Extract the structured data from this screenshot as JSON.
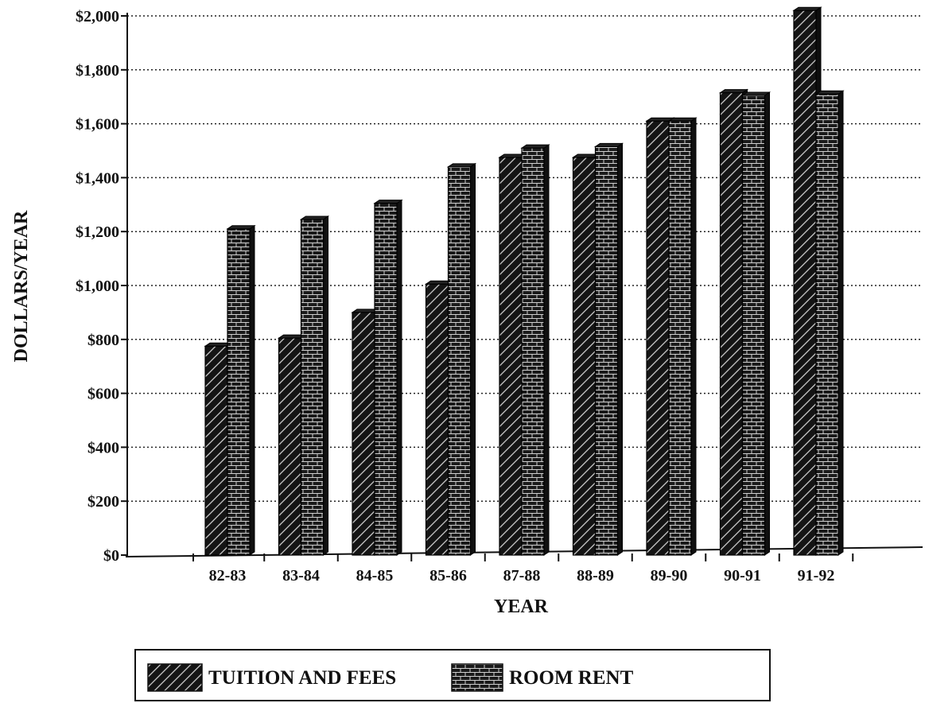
{
  "chart_data": {
    "type": "bar",
    "xlabel": "YEAR",
    "ylabel": "DOLLARS/YEAR",
    "ylim": [
      0,
      2000
    ],
    "yticks": [
      0,
      200,
      400,
      600,
      800,
      1000,
      1200,
      1400,
      1600,
      1800,
      2000
    ],
    "ytick_labels": [
      "$0",
      "$200",
      "$400",
      "$600",
      "$800",
      "$1,000",
      "$1,200",
      "$1,400",
      "$1,600",
      "$1,800",
      "$2,000"
    ],
    "categories": [
      "82-83",
      "83-84",
      "84-85",
      "85-86",
      "87-88",
      "88-89",
      "89-90",
      "90-91",
      "91-92"
    ],
    "series": [
      {
        "name": "TUITION AND FEES",
        "values": [
          775,
          805,
          900,
          1005,
          1475,
          1475,
          1610,
          1715,
          2020
        ]
      },
      {
        "name": "ROOM RENT",
        "values": [
          1210,
          1245,
          1305,
          1440,
          1510,
          1515,
          1610,
          1705,
          1710
        ]
      }
    ],
    "grid": true,
    "legend_position": "bottom"
  }
}
